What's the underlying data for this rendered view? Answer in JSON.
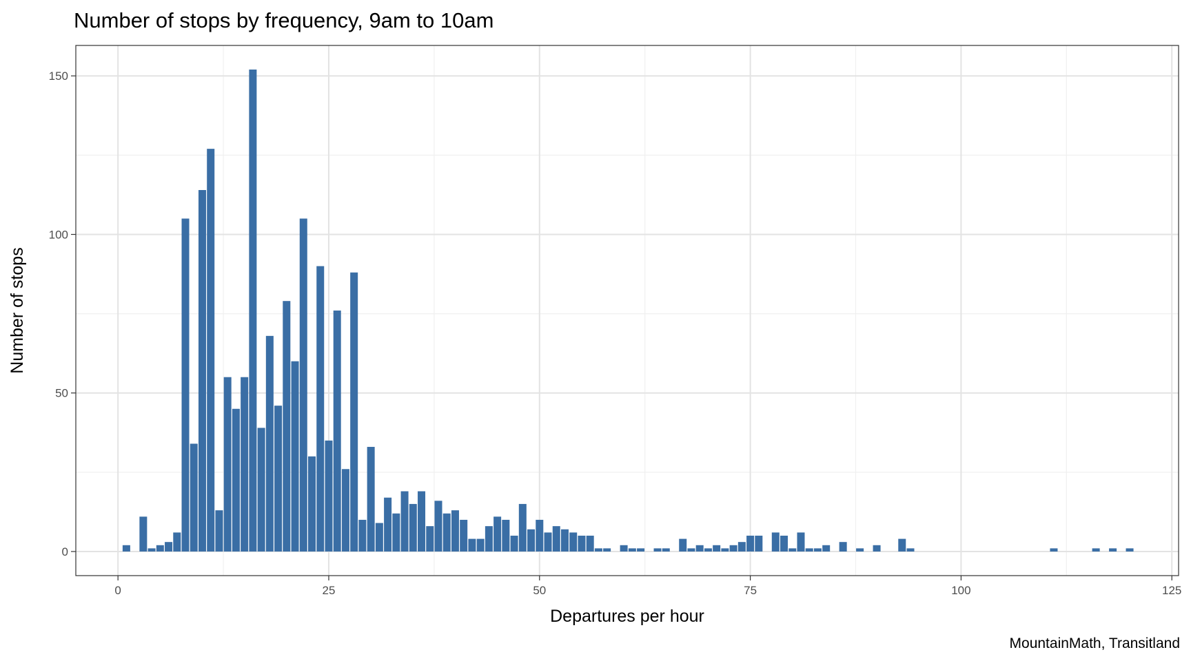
{
  "chart_data": {
    "type": "bar",
    "title": "Number of stops by frequency, 9am to 10am",
    "xlabel": "Departures per hour",
    "ylabel": "Number of stops",
    "caption": "MountainMath, Transitland",
    "xlim": [
      -5,
      125.8
    ],
    "ylim": [
      -7.6,
      159.6
    ],
    "x_ticks": [
      0,
      25,
      50,
      75,
      100,
      125
    ],
    "y_ticks": [
      0,
      50,
      100,
      150
    ],
    "grid": true,
    "bar_color": "#3a6ea5",
    "x": [
      1,
      3,
      4,
      5,
      6,
      7,
      8,
      9,
      10,
      11,
      12,
      13,
      14,
      15,
      16,
      17,
      18,
      19,
      20,
      21,
      22,
      23,
      24,
      25,
      26,
      27,
      28,
      29,
      30,
      31,
      32,
      33,
      34,
      35,
      36,
      37,
      38,
      39,
      40,
      41,
      42,
      43,
      44,
      45,
      46,
      47,
      48,
      49,
      50,
      51,
      52,
      53,
      54,
      55,
      56,
      57,
      58,
      60,
      61,
      62,
      64,
      65,
      67,
      68,
      69,
      70,
      71,
      72,
      73,
      74,
      75,
      76,
      78,
      79,
      80,
      81,
      82,
      83,
      84,
      86,
      88,
      90,
      93,
      94,
      111,
      116,
      118,
      120
    ],
    "values": [
      2,
      11,
      1,
      2,
      3,
      6,
      105,
      34,
      114,
      127,
      13,
      55,
      45,
      55,
      152,
      39,
      68,
      46,
      79,
      60,
      105,
      30,
      90,
      35,
      76,
      26,
      88,
      10,
      33,
      9,
      17,
      12,
      19,
      15,
      19,
      8,
      16,
      12,
      13,
      10,
      4,
      4,
      8,
      11,
      10,
      5,
      15,
      7,
      10,
      6,
      8,
      7,
      6,
      5,
      5,
      1,
      1,
      2,
      1,
      1,
      1,
      1,
      4,
      1,
      2,
      1,
      2,
      1,
      2,
      3,
      5,
      5,
      6,
      5,
      1,
      6,
      1,
      1,
      2,
      3,
      1,
      2,
      4,
      1,
      1,
      1,
      1,
      1
    ]
  }
}
